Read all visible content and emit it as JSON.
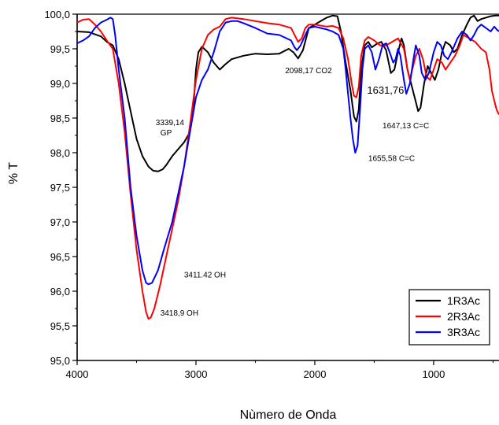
{
  "chart_data": {
    "type": "line",
    "title": "",
    "xlabel": "Nùmero de Onda",
    "ylabel": "% T",
    "xlim": [
      4000,
      450
    ],
    "ylim": [
      95.0,
      100.0
    ],
    "x_ticks": [
      4000,
      3000,
      2000,
      1000
    ],
    "x_tick_labels": [
      "4000",
      "3000",
      "2000",
      "1000"
    ],
    "y_ticks": [
      95.0,
      95.5,
      96.0,
      96.5,
      97.0,
      97.5,
      98.0,
      98.5,
      99.0,
      99.5,
      100.0
    ],
    "y_tick_labels": [
      "95,0",
      "95,5",
      "96,0",
      "96,5",
      "97,0",
      "97,5",
      "98,0",
      "98,5",
      "99,0",
      "99,5",
      "100,0"
    ],
    "legend_position": "bottom-right",
    "grid": false,
    "series": [
      {
        "name": "1R3Ac",
        "color": "#000000",
        "points": [
          [
            4000,
            99.75
          ],
          [
            3900,
            99.74
          ],
          [
            3800,
            99.68
          ],
          [
            3750,
            99.6
          ],
          [
            3700,
            99.55
          ],
          [
            3650,
            99.35
          ],
          [
            3600,
            99.0
          ],
          [
            3550,
            98.6
          ],
          [
            3500,
            98.2
          ],
          [
            3450,
            97.95
          ],
          [
            3400,
            97.8
          ],
          [
            3360,
            97.74
          ],
          [
            3320,
            97.73
          ],
          [
            3280,
            97.76
          ],
          [
            3250,
            97.82
          ],
          [
            3200,
            97.95
          ],
          [
            3150,
            98.05
          ],
          [
            3100,
            98.15
          ],
          [
            3050,
            98.3
          ],
          [
            3020,
            98.7
          ],
          [
            3000,
            99.2
          ],
          [
            2980,
            99.45
          ],
          [
            2950,
            99.53
          ],
          [
            2900,
            99.45
          ],
          [
            2850,
            99.3
          ],
          [
            2800,
            99.2
          ],
          [
            2750,
            99.28
          ],
          [
            2700,
            99.35
          ],
          [
            2600,
            99.4
          ],
          [
            2500,
            99.43
          ],
          [
            2400,
            99.42
          ],
          [
            2300,
            99.43
          ],
          [
            2220,
            99.5
          ],
          [
            2180,
            99.45
          ],
          [
            2140,
            99.36
          ],
          [
            2100,
            99.48
          ],
          [
            2050,
            99.8
          ],
          [
            2000,
            99.85
          ],
          [
            1950,
            99.9
          ],
          [
            1900,
            99.95
          ],
          [
            1850,
            99.98
          ],
          [
            1810,
            99.97
          ],
          [
            1780,
            99.75
          ],
          [
            1740,
            99.3
          ],
          [
            1700,
            98.9
          ],
          [
            1670,
            98.52
          ],
          [
            1650,
            98.45
          ],
          [
            1630,
            98.62
          ],
          [
            1610,
            99.2
          ],
          [
            1580,
            99.55
          ],
          [
            1550,
            99.6
          ],
          [
            1520,
            99.52
          ],
          [
            1480,
            99.57
          ],
          [
            1440,
            99.6
          ],
          [
            1400,
            99.48
          ],
          [
            1360,
            99.15
          ],
          [
            1330,
            99.2
          ],
          [
            1300,
            99.45
          ],
          [
            1270,
            99.65
          ],
          [
            1250,
            99.55
          ],
          [
            1220,
            99.2
          ],
          [
            1190,
            99.0
          ],
          [
            1160,
            98.8
          ],
          [
            1130,
            98.6
          ],
          [
            1110,
            98.65
          ],
          [
            1080,
            99.0
          ],
          [
            1050,
            99.25
          ],
          [
            1020,
            99.15
          ],
          [
            990,
            99.05
          ],
          [
            960,
            99.2
          ],
          [
            930,
            99.45
          ],
          [
            900,
            99.6
          ],
          [
            860,
            99.55
          ],
          [
            830,
            99.45
          ],
          [
            800,
            99.5
          ],
          [
            760,
            99.7
          ],
          [
            720,
            99.85
          ],
          [
            690,
            99.95
          ],
          [
            660,
            99.98
          ],
          [
            630,
            99.9
          ],
          [
            600,
            99.93
          ],
          [
            560,
            99.95
          ],
          [
            520,
            99.97
          ],
          [
            480,
            99.98
          ],
          [
            450,
            99.98
          ]
        ]
      },
      {
        "name": "2R3Ac",
        "color": "#ff0000",
        "points": [
          [
            4000,
            99.88
          ],
          [
            3950,
            99.92
          ],
          [
            3900,
            99.93
          ],
          [
            3850,
            99.85
          ],
          [
            3800,
            99.75
          ],
          [
            3750,
            99.62
          ],
          [
            3700,
            99.5
          ],
          [
            3650,
            99.0
          ],
          [
            3600,
            98.3
          ],
          [
            3550,
            97.4
          ],
          [
            3500,
            96.6
          ],
          [
            3450,
            96.0
          ],
          [
            3420,
            95.7
          ],
          [
            3400,
            95.6
          ],
          [
            3380,
            95.62
          ],
          [
            3350,
            95.75
          ],
          [
            3300,
            96.1
          ],
          [
            3250,
            96.5
          ],
          [
            3200,
            96.9
          ],
          [
            3150,
            97.3
          ],
          [
            3100,
            97.8
          ],
          [
            3050,
            98.4
          ],
          [
            3000,
            99.05
          ],
          [
            2950,
            99.5
          ],
          [
            2900,
            99.7
          ],
          [
            2850,
            99.78
          ],
          [
            2800,
            99.82
          ],
          [
            2750,
            99.93
          ],
          [
            2700,
            99.95
          ],
          [
            2600,
            99.93
          ],
          [
            2500,
            99.9
          ],
          [
            2400,
            99.87
          ],
          [
            2300,
            99.85
          ],
          [
            2200,
            99.8
          ],
          [
            2170,
            99.7
          ],
          [
            2140,
            99.6
          ],
          [
            2110,
            99.65
          ],
          [
            2080,
            99.8
          ],
          [
            2050,
            99.85
          ],
          [
            2000,
            99.85
          ],
          [
            1900,
            99.82
          ],
          [
            1850,
            99.83
          ],
          [
            1800,
            99.8
          ],
          [
            1760,
            99.65
          ],
          [
            1720,
            99.35
          ],
          [
            1690,
            99.0
          ],
          [
            1670,
            98.82
          ],
          [
            1650,
            98.8
          ],
          [
            1630,
            98.95
          ],
          [
            1610,
            99.4
          ],
          [
            1580,
            99.62
          ],
          [
            1550,
            99.67
          ],
          [
            1500,
            99.62
          ],
          [
            1450,
            99.55
          ],
          [
            1400,
            99.55
          ],
          [
            1350,
            99.6
          ],
          [
            1300,
            99.65
          ],
          [
            1250,
            99.5
          ],
          [
            1220,
            99.2
          ],
          [
            1200,
            99.05
          ],
          [
            1180,
            99.2
          ],
          [
            1150,
            99.4
          ],
          [
            1120,
            99.5
          ],
          [
            1090,
            99.35
          ],
          [
            1060,
            99.1
          ],
          [
            1030,
            99.05
          ],
          [
            1000,
            99.2
          ],
          [
            970,
            99.35
          ],
          [
            930,
            99.3
          ],
          [
            900,
            99.2
          ],
          [
            860,
            99.3
          ],
          [
            820,
            99.4
          ],
          [
            780,
            99.55
          ],
          [
            750,
            99.7
          ],
          [
            700,
            99.65
          ],
          [
            650,
            99.6
          ],
          [
            600,
            99.5
          ],
          [
            560,
            99.45
          ],
          [
            530,
            99.2
          ],
          [
            510,
            98.9
          ],
          [
            490,
            98.75
          ],
          [
            470,
            98.62
          ],
          [
            450,
            98.55
          ]
        ]
      },
      {
        "name": "3R3Ac",
        "color": "#0000ff",
        "points": [
          [
            4000,
            99.58
          ],
          [
            3950,
            99.62
          ],
          [
            3900,
            99.68
          ],
          [
            3850,
            99.8
          ],
          [
            3800,
            99.88
          ],
          [
            3750,
            99.92
          ],
          [
            3720,
            99.95
          ],
          [
            3700,
            99.93
          ],
          [
            3680,
            99.7
          ],
          [
            3650,
            99.2
          ],
          [
            3600,
            98.5
          ],
          [
            3550,
            97.5
          ],
          [
            3500,
            96.8
          ],
          [
            3450,
            96.3
          ],
          [
            3420,
            96.12
          ],
          [
            3400,
            96.1
          ],
          [
            3370,
            96.12
          ],
          [
            3320,
            96.3
          ],
          [
            3270,
            96.6
          ],
          [
            3200,
            97.0
          ],
          [
            3150,
            97.4
          ],
          [
            3100,
            97.8
          ],
          [
            3050,
            98.3
          ],
          [
            3000,
            98.8
          ],
          [
            2950,
            99.05
          ],
          [
            2900,
            99.2
          ],
          [
            2850,
            99.45
          ],
          [
            2800,
            99.75
          ],
          [
            2750,
            99.88
          ],
          [
            2700,
            99.9
          ],
          [
            2650,
            99.9
          ],
          [
            2600,
            99.87
          ],
          [
            2500,
            99.8
          ],
          [
            2400,
            99.72
          ],
          [
            2300,
            99.7
          ],
          [
            2200,
            99.62
          ],
          [
            2170,
            99.52
          ],
          [
            2150,
            99.48
          ],
          [
            2120,
            99.55
          ],
          [
            2080,
            99.7
          ],
          [
            2050,
            99.8
          ],
          [
            2000,
            99.82
          ],
          [
            1950,
            99.8
          ],
          [
            1900,
            99.78
          ],
          [
            1850,
            99.75
          ],
          [
            1800,
            99.7
          ],
          [
            1760,
            99.5
          ],
          [
            1740,
            99.2
          ],
          [
            1720,
            98.85
          ],
          [
            1700,
            98.5
          ],
          [
            1680,
            98.2
          ],
          [
            1660,
            98.0
          ],
          [
            1640,
            98.1
          ],
          [
            1620,
            98.6
          ],
          [
            1600,
            99.2
          ],
          [
            1580,
            99.5
          ],
          [
            1550,
            99.55
          ],
          [
            1520,
            99.45
          ],
          [
            1490,
            99.2
          ],
          [
            1460,
            99.35
          ],
          [
            1430,
            99.55
          ],
          [
            1400,
            99.58
          ],
          [
            1370,
            99.45
          ],
          [
            1340,
            99.3
          ],
          [
            1320,
            99.35
          ],
          [
            1300,
            99.5
          ],
          [
            1280,
            99.4
          ],
          [
            1250,
            99.05
          ],
          [
            1230,
            98.85
          ],
          [
            1200,
            99.0
          ],
          [
            1170,
            99.35
          ],
          [
            1150,
            99.55
          ],
          [
            1120,
            99.4
          ],
          [
            1100,
            99.15
          ],
          [
            1070,
            99.05
          ],
          [
            1040,
            99.15
          ],
          [
            1000,
            99.45
          ],
          [
            970,
            99.6
          ],
          [
            940,
            99.55
          ],
          [
            910,
            99.4
          ],
          [
            880,
            99.35
          ],
          [
            850,
            99.45
          ],
          [
            800,
            99.65
          ],
          [
            760,
            99.75
          ],
          [
            720,
            99.7
          ],
          [
            690,
            99.62
          ],
          [
            660,
            99.7
          ],
          [
            630,
            99.8
          ],
          [
            600,
            99.85
          ],
          [
            560,
            99.8
          ],
          [
            520,
            99.75
          ],
          [
            490,
            99.82
          ],
          [
            470,
            99.78
          ],
          [
            450,
            99.75
          ]
        ]
      }
    ],
    "annotations": [
      {
        "id": "gp",
        "lines": [
          "3339,14",
          "GP"
        ],
        "x": 3339,
        "y": 98.4
      },
      {
        "id": "oh-3411",
        "lines": [
          "3411.42  OH"
        ],
        "x": 3100,
        "y": 96.2
      },
      {
        "id": "oh-3418",
        "lines": [
          "3418,9  OH"
        ],
        "x": 3300,
        "y": 95.65
      },
      {
        "id": "co2",
        "lines": [
          "2098,17 CO2"
        ],
        "x": 2250,
        "y": 99.15
      },
      {
        "id": "cc-1631",
        "lines": [
          "1631,76"
        ],
        "x": 1560,
        "y": 98.85,
        "big": true
      },
      {
        "id": "cc-1647",
        "lines": [
          "1647,13  C=C"
        ],
        "x": 1430,
        "y": 98.35
      },
      {
        "id": "cc-1655",
        "lines": [
          "1655,58 C=C"
        ],
        "x": 1550,
        "y": 97.88
      }
    ]
  }
}
